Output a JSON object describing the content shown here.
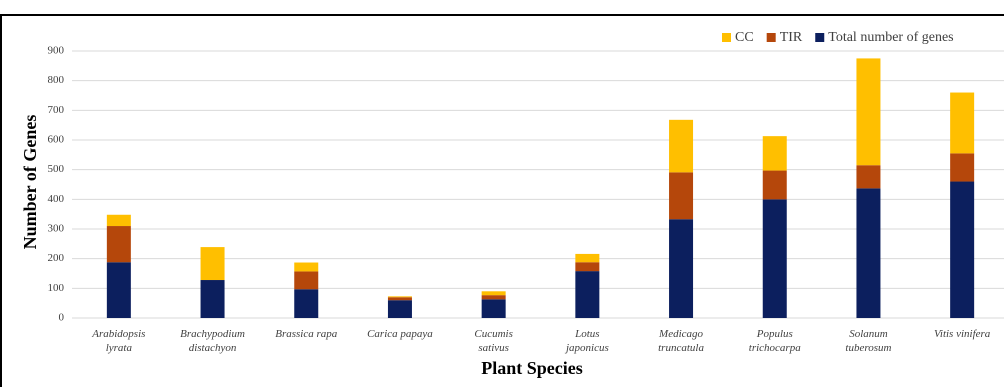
{
  "chart_data": {
    "type": "stacked_bar",
    "x_label": "Plant Species",
    "y_label": "Number of Genes",
    "categories": [
      "Arabidopsis\nlyrata",
      "Brachypodium\ndistachyon",
      "Brassica rapa",
      "Carica papaya",
      "Cucumis\nsativus",
      "Lotus\njaponicus",
      "Medicago\ntruncatula",
      "Populus\ntrichocarpa",
      "Solanum\ntuberosum",
      "Vitis vinifera"
    ],
    "series": [
      {
        "name": "Total number of genes",
        "color": "#0c1f5e",
        "values": [
          188,
          128,
          97,
          60,
          63,
          158,
          333,
          400,
          437,
          460
        ]
      },
      {
        "name": "TIR",
        "color": "#b5470b",
        "values": [
          122,
          0,
          60,
          10,
          14,
          30,
          158,
          97,
          78,
          95
        ]
      },
      {
        "name": "CC",
        "color": "#ffbf00",
        "values": [
          38,
          111,
          30,
          3,
          13,
          28,
          177,
          116,
          360,
          205
        ]
      }
    ],
    "ylim": [
      0,
      900
    ],
    "yticks": [
      0,
      100,
      200,
      300,
      400,
      500,
      600,
      700,
      800,
      900
    ],
    "grid": true,
    "legend": "top-right"
  }
}
